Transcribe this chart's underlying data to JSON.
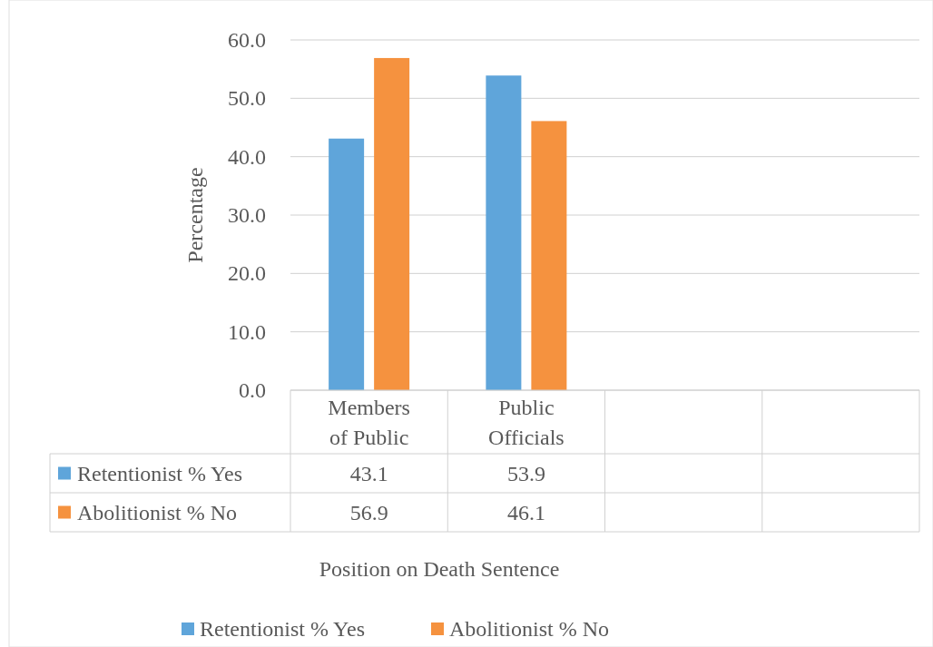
{
  "chart_data": {
    "type": "bar",
    "xlabel": "Position on Death Sentence",
    "ylabel": "Percentage",
    "categories": [
      "Members of Public",
      "Public Officials",
      null,
      null
    ],
    "series": [
      {
        "name": "Retentionist % Yes",
        "color": "#5fa5da",
        "values": [
          43.1,
          53.9,
          null,
          null
        ]
      },
      {
        "name": "Abolitionist % No",
        "color": "#f5923f",
        "values": [
          56.9,
          46.1,
          null,
          null
        ]
      }
    ],
    "ylim": [
      0,
      60
    ],
    "yticks": [
      {
        "value": 0,
        "label": "0.0"
      },
      {
        "value": 10,
        "label": "10.0"
      },
      {
        "value": 20,
        "label": "20.0"
      },
      {
        "value": 30,
        "label": "30.0"
      },
      {
        "value": 40,
        "label": "40.0"
      },
      {
        "value": 50,
        "label": "50.0"
      },
      {
        "value": 60,
        "label": "60.0"
      }
    ],
    "grid": "y",
    "legend": "bottom",
    "data_labels": true
  }
}
